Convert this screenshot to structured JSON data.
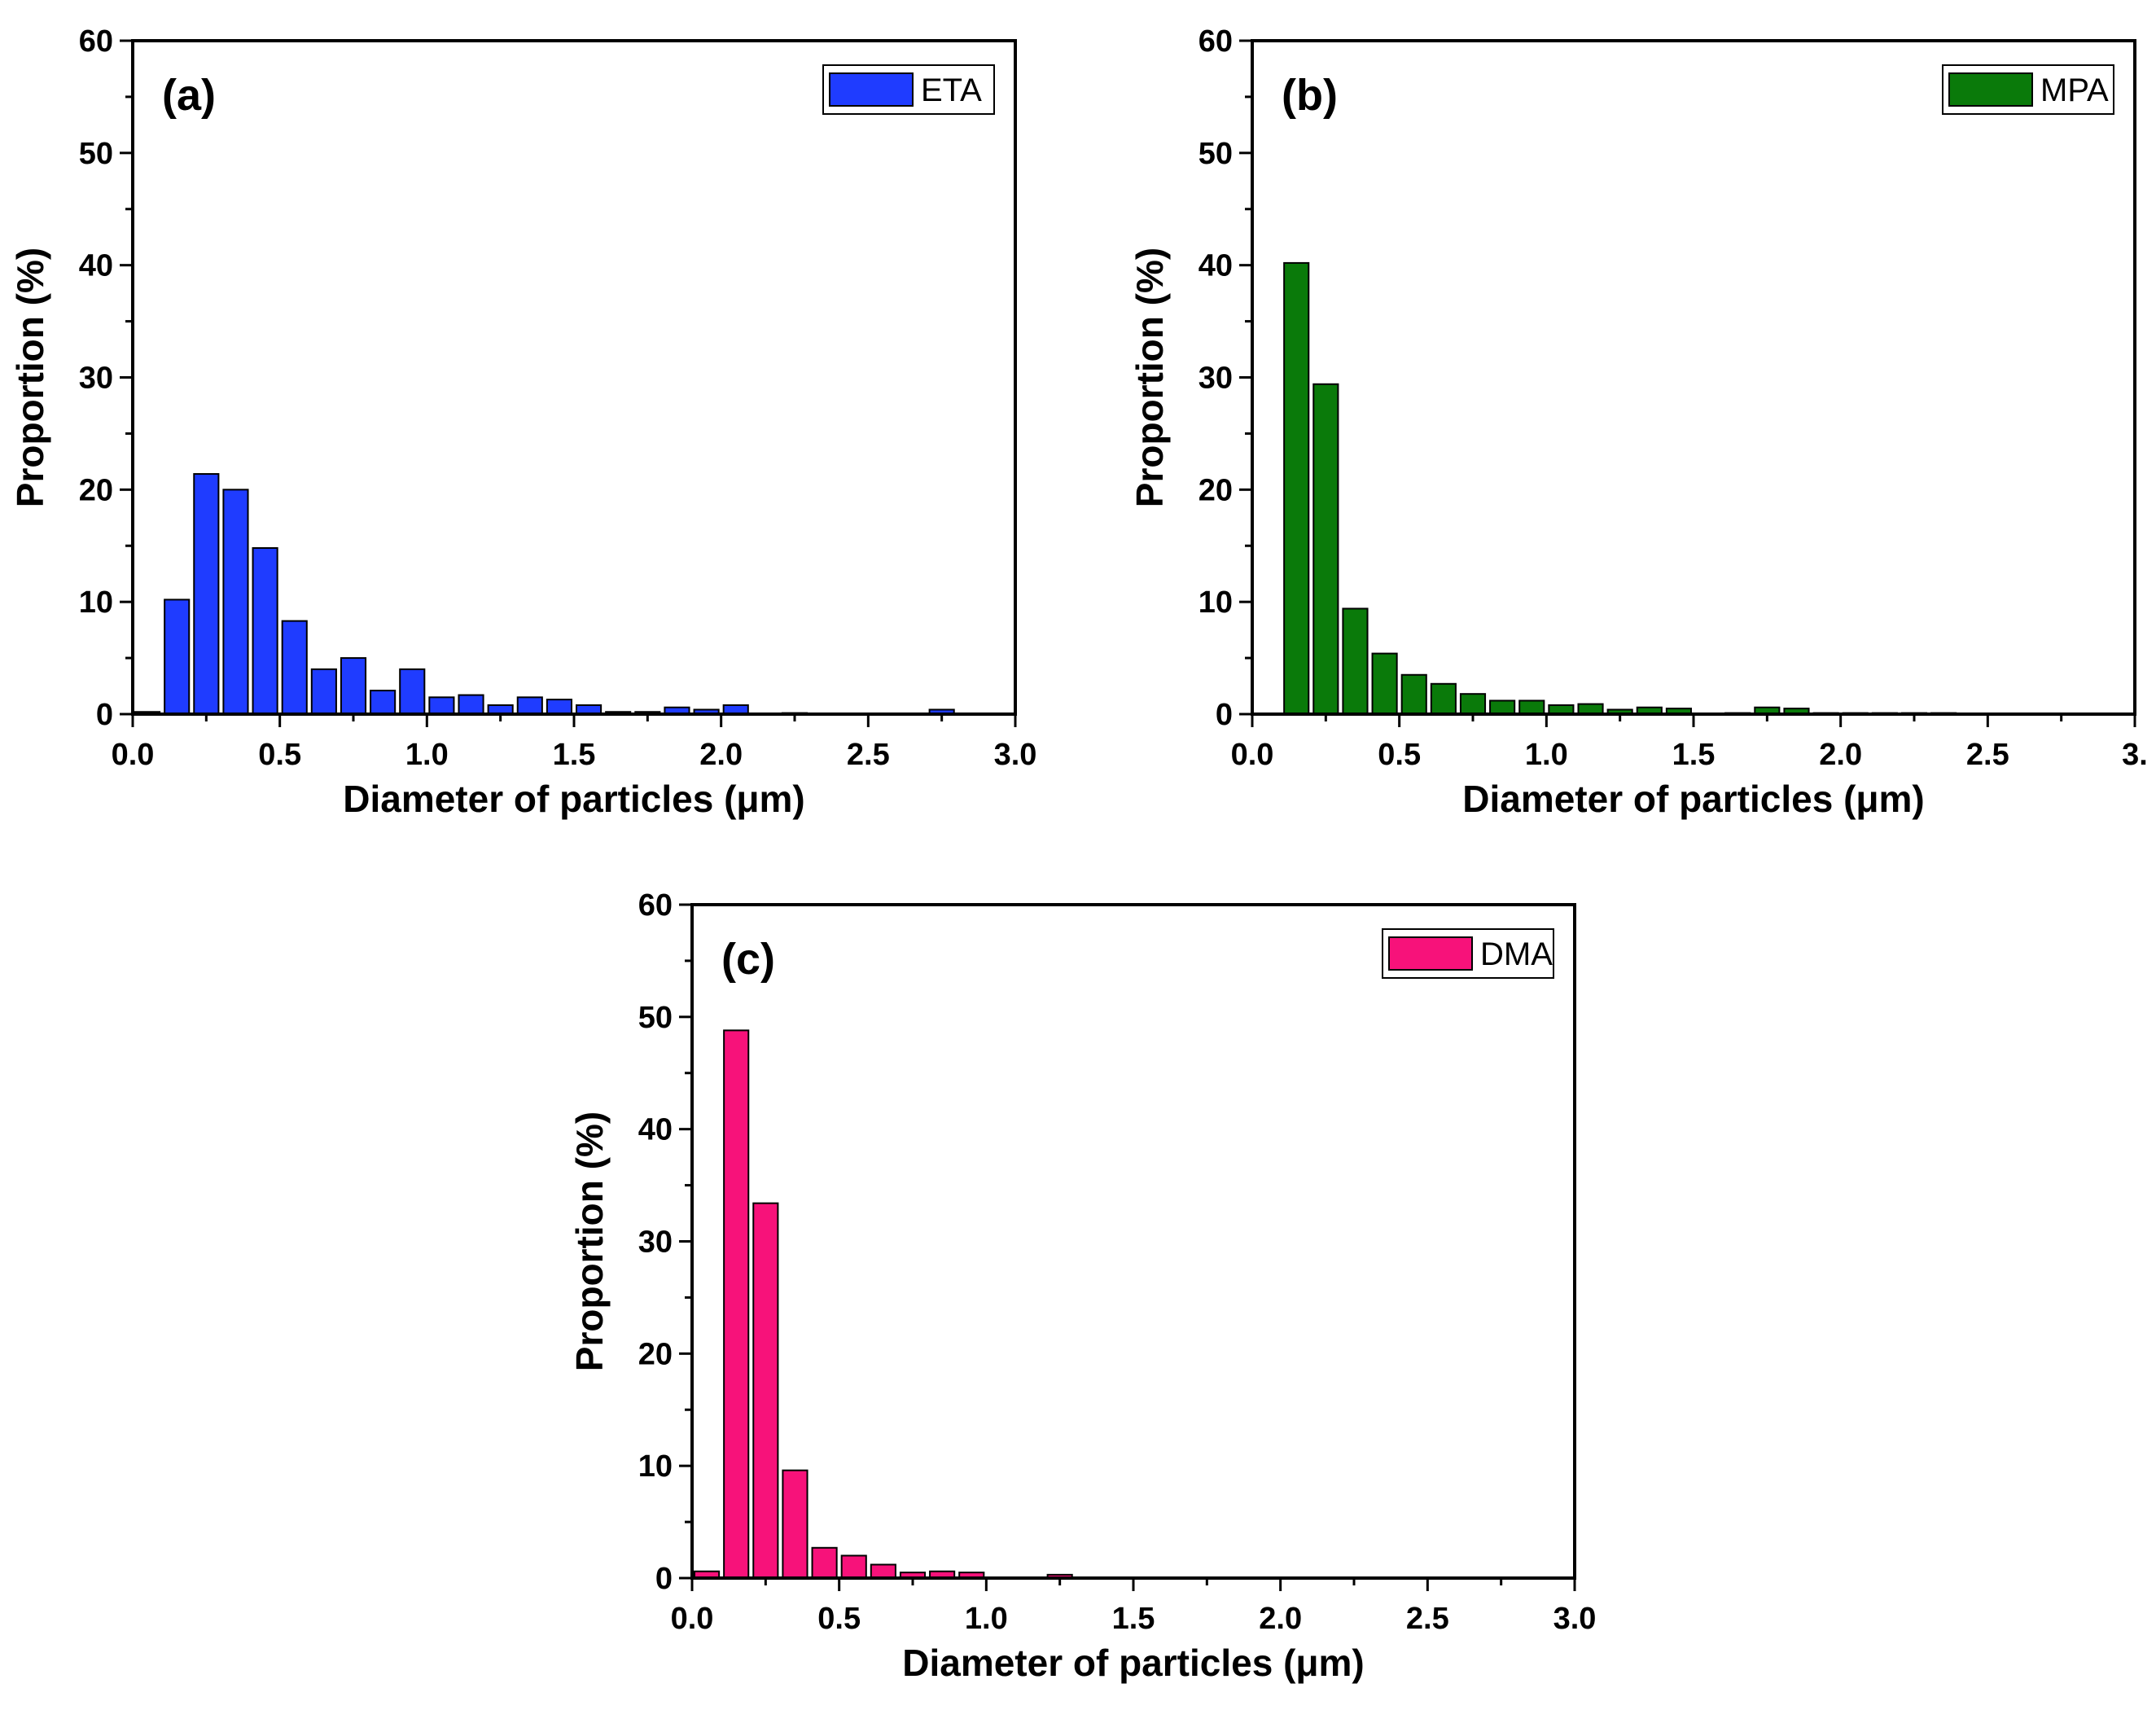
{
  "figure": {
    "panel_count": 3
  },
  "chart_data": [
    {
      "type": "bar",
      "panel_label": "(a)",
      "title": "",
      "xlabel": "Diameter of particles (μm)",
      "ylabel": "Proportion (%)",
      "xlim": [
        0,
        3
      ],
      "ylim": [
        0,
        60
      ],
      "xticks": [
        "0.0",
        "0.5",
        "1.0",
        "1.5",
        "2.0",
        "2.5",
        "3.0"
      ],
      "yticks": [
        "0",
        "10",
        "20",
        "30",
        "40",
        "50",
        "60"
      ],
      "bin_width": 0.1,
      "legend": {
        "label": "ETA",
        "location": "top-right"
      },
      "color": "#1f3cff",
      "series": [
        {
          "name": "ETA",
          "x": [
            0.05,
            0.15,
            0.25,
            0.35,
            0.45,
            0.55,
            0.65,
            0.75,
            0.85,
            0.95,
            1.05,
            1.15,
            1.25,
            1.35,
            1.45,
            1.55,
            1.65,
            1.75,
            1.85,
            1.95,
            2.05,
            2.25,
            2.75
          ],
          "values": [
            0.2,
            10.2,
            21.4,
            20.0,
            14.8,
            8.3,
            4.0,
            5.0,
            2.1,
            4.0,
            1.5,
            1.7,
            0.8,
            1.5,
            1.3,
            0.8,
            0.2,
            0.2,
            0.6,
            0.4,
            0.8,
            0.1,
            0.4
          ]
        }
      ]
    },
    {
      "type": "bar",
      "panel_label": "(b)",
      "title": "",
      "xlabel": "Diameter of particles (μm)",
      "ylabel": "Proportion (%)",
      "xlim": [
        0,
        3
      ],
      "ylim": [
        0,
        60
      ],
      "xticks": [
        "0.0",
        "0.5",
        "1.0",
        "1.5",
        "2.0",
        "2.5",
        "3."
      ],
      "yticks": [
        "0",
        "10",
        "20",
        "30",
        "40",
        "50",
        "60"
      ],
      "bin_width": 0.1,
      "legend": {
        "label": "MPA",
        "location": "top-right"
      },
      "color": "#0a7a0a",
      "series": [
        {
          "name": "MPA",
          "x": [
            0.15,
            0.25,
            0.35,
            0.45,
            0.55,
            0.65,
            0.75,
            0.85,
            0.95,
            1.05,
            1.15,
            1.25,
            1.35,
            1.45,
            1.65,
            1.75,
            1.85,
            1.95,
            2.05,
            2.15,
            2.25,
            2.35
          ],
          "values": [
            40.2,
            29.4,
            9.4,
            5.4,
            3.5,
            2.7,
            1.8,
            1.2,
            1.2,
            0.8,
            0.9,
            0.4,
            0.6,
            0.5,
            0.1,
            0.6,
            0.5,
            0.1,
            0.1,
            0.1,
            0.1,
            0.1
          ]
        }
      ]
    },
    {
      "type": "bar",
      "panel_label": "(c)",
      "title": "",
      "xlabel": "Diameter of particles (μm)",
      "ylabel": "Proportion (%)",
      "xlim": [
        0,
        3
      ],
      "ylim": [
        0,
        60
      ],
      "xticks": [
        "0.0",
        "0.5",
        "1.0",
        "1.5",
        "2.0",
        "2.5",
        "3.0"
      ],
      "yticks": [
        "0",
        "10",
        "20",
        "30",
        "40",
        "50",
        "60"
      ],
      "bin_width": 0.1,
      "legend": {
        "label": "DMA",
        "location": "top-right"
      },
      "color": "#f7127a",
      "series": [
        {
          "name": "DMA",
          "x": [
            0.05,
            0.15,
            0.25,
            0.35,
            0.45,
            0.55,
            0.65,
            0.75,
            0.85,
            0.95,
            1.25
          ],
          "values": [
            0.6,
            48.8,
            33.4,
            9.6,
            2.7,
            2.0,
            1.2,
            0.5,
            0.6,
            0.5,
            0.3
          ]
        }
      ]
    }
  ]
}
